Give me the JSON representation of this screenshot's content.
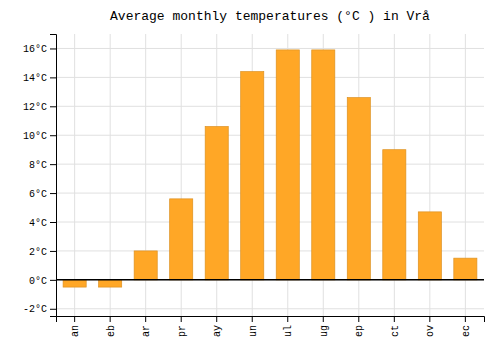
{
  "chart_data": {
    "type": "bar",
    "title": "Average monthly temperatures (°C ) in Vrå",
    "categories": [
      "an",
      "eb",
      "ar",
      "pr",
      "ay",
      "un",
      "ul",
      "ug",
      "ep",
      "ct",
      "ov",
      "ec"
    ],
    "values": [
      -0.5,
      -0.5,
      2.0,
      5.6,
      10.6,
      14.4,
      15.9,
      15.9,
      12.6,
      9.0,
      4.7,
      1.5
    ],
    "color": "#FFA726",
    "ylim": [
      -2.5,
      17.0
    ],
    "yticks": [
      {
        "value": -2,
        "label": "-2°C"
      },
      {
        "value": 0,
        "label": "0°C"
      },
      {
        "value": 2,
        "label": "2°C"
      },
      {
        "value": 4,
        "label": "4°C"
      },
      {
        "value": 6,
        "label": "6°C"
      },
      {
        "value": 8,
        "label": "8°C"
      },
      {
        "value": 10,
        "label": "10°C"
      },
      {
        "value": 12,
        "label": "12°C"
      },
      {
        "value": 14,
        "label": "14°C"
      },
      {
        "value": 16,
        "label": "16°C"
      }
    ],
    "grid": true
  }
}
